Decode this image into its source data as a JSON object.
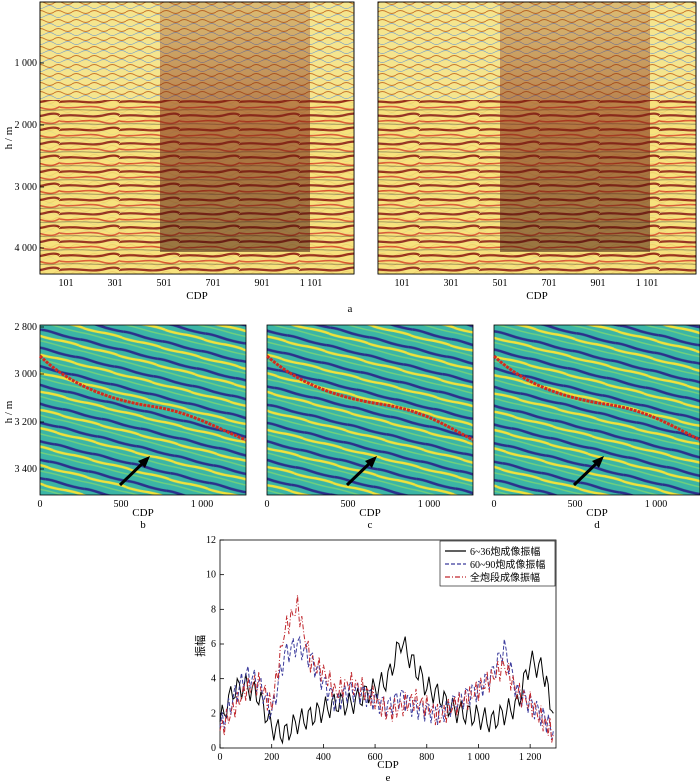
{
  "figure": {
    "panel_a": {
      "label": "a",
      "ylabel": "h / m",
      "xlabel": "CDP",
      "yticks": [
        "1 000",
        "2 000",
        "3 000",
        "4 000"
      ],
      "xticks": [
        "101",
        "301",
        "501",
        "701",
        "901",
        "1 101"
      ]
    },
    "panels_bcd": {
      "ylabel": "h / m",
      "xlabel": "CDP",
      "yticks": [
        "2 800",
        "3 000",
        "3 200",
        "3 400"
      ],
      "xticks": [
        "0",
        "500",
        "1 000"
      ],
      "labels": [
        "b",
        "c",
        "d"
      ]
    },
    "panel_e": {
      "label": "e",
      "xlabel": "CDP",
      "ylabel": "振幅",
      "legend": [
        "6~36炮成像振幅",
        "60~90炮成像振幅",
        "全炮段成像振幅"
      ]
    }
  },
  "colors": {
    "seismic_red": "#c0392b",
    "seismic_yellow": "#f4d63a",
    "cyan_bg": "#37b6a8",
    "line_black": "#000000",
    "line_blue": "#3b3b9c",
    "line_red": "#c0272d"
  },
  "chart_data": {
    "type": "line",
    "title": "",
    "xlabel": "CDP",
    "ylabel": "振幅",
    "xlim": [
      0,
      1300
    ],
    "ylim": [
      0,
      12
    ],
    "xticks": [
      "0",
      "200",
      "400",
      "600",
      "800",
      "1 000",
      "1 200"
    ],
    "yticks": [
      "0",
      "2",
      "4",
      "6",
      "8",
      "10",
      "12"
    ],
    "x": [
      0,
      50,
      100,
      150,
      200,
      250,
      300,
      350,
      400,
      450,
      500,
      550,
      600,
      650,
      700,
      750,
      800,
      850,
      900,
      950,
      1000,
      1050,
      1100,
      1150,
      1200,
      1250,
      1290
    ],
    "series": [
      {
        "name": "6~36炮成像振幅",
        "style": "solid",
        "values": [
          1.5,
          3.3,
          3.6,
          3.0,
          1.2,
          0.8,
          1.5,
          1.8,
          2.2,
          2.6,
          2.5,
          3.0,
          3.4,
          4.0,
          6.2,
          4.8,
          3.5,
          3.0,
          2.2,
          2.0,
          1.8,
          1.5,
          2.0,
          2.5,
          5.0,
          4.5,
          2.0
        ]
      },
      {
        "name": "60~90炮成像振幅",
        "style": "dashed",
        "values": [
          1.2,
          2.8,
          4.2,
          3.8,
          2.0,
          5.4,
          6.0,
          5.2,
          3.8,
          2.6,
          3.4,
          3.2,
          2.8,
          2.4,
          3.0,
          2.4,
          2.2,
          2.0,
          2.6,
          3.0,
          3.4,
          4.2,
          5.8,
          3.2,
          2.6,
          1.8,
          1.0
        ]
      },
      {
        "name": "全炮段成像振幅",
        "style": "dashdot",
        "values": [
          1.0,
          2.2,
          3.4,
          3.8,
          2.4,
          6.8,
          8.2,
          5.0,
          4.4,
          3.2,
          3.8,
          3.4,
          2.8,
          2.0,
          2.4,
          2.8,
          2.4,
          1.8,
          2.4,
          2.8,
          3.4,
          4.0,
          4.8,
          3.2,
          2.6,
          1.6,
          0.8
        ]
      }
    ]
  }
}
